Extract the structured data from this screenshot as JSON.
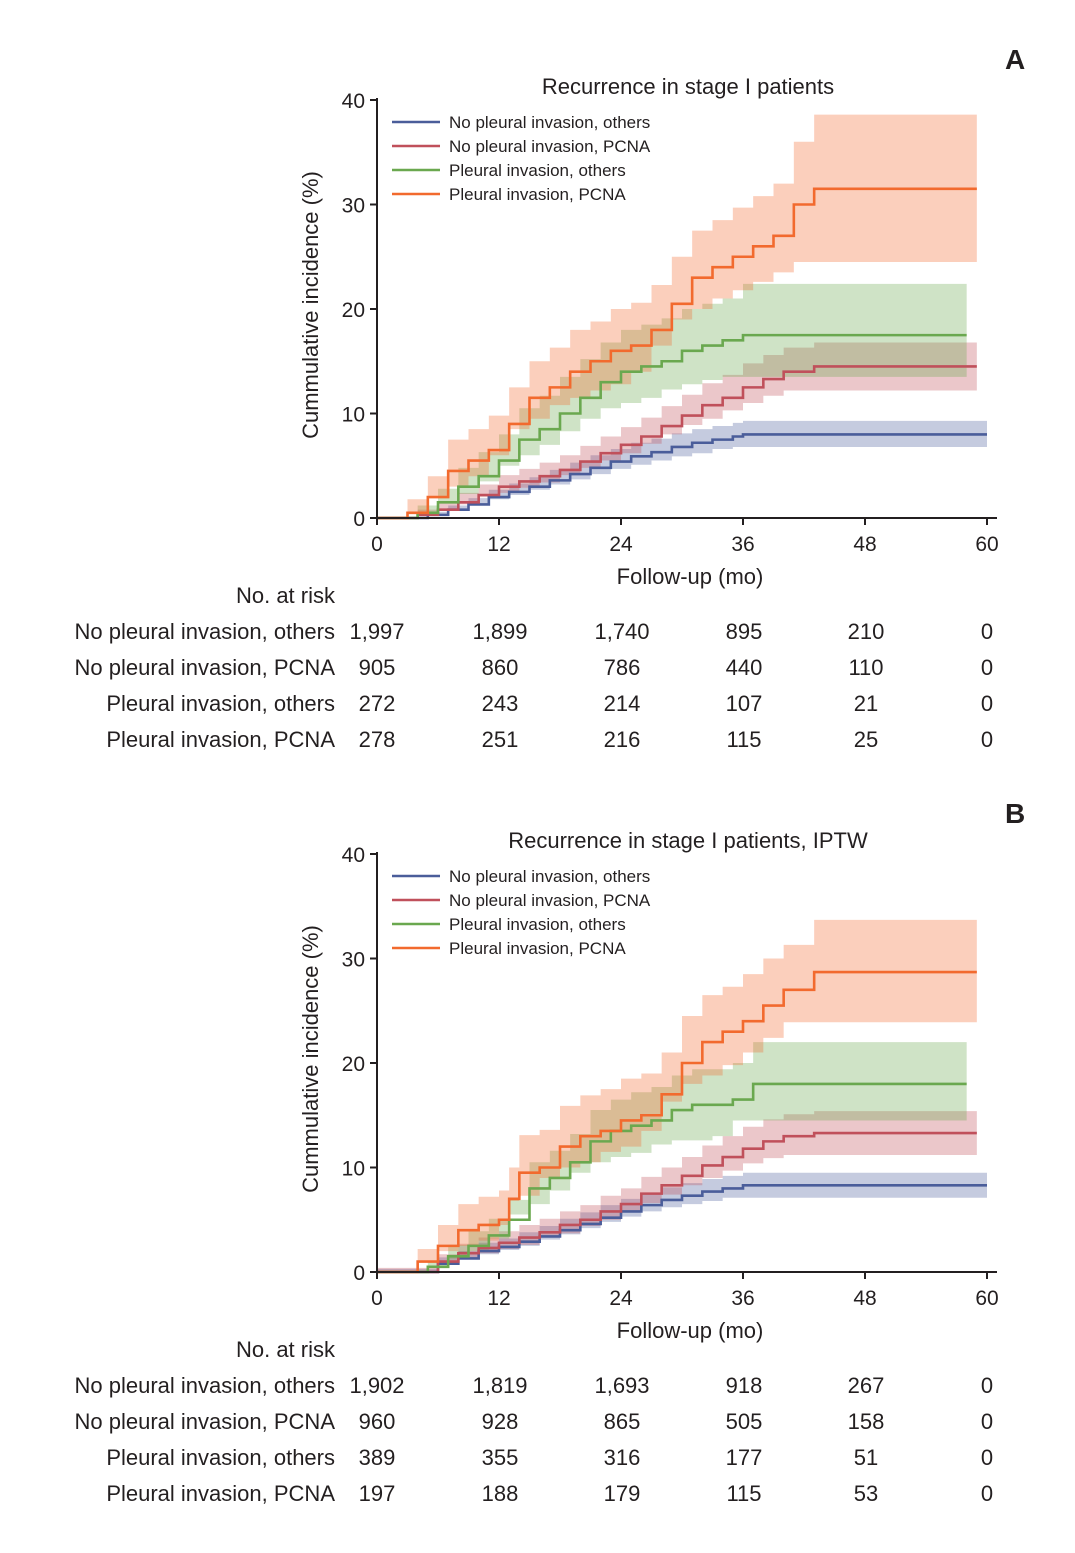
{
  "colors": {
    "blue": "#4a5d9a",
    "red": "#c0505b",
    "green": "#6aa84f",
    "orange": "#f26a2e"
  },
  "chart_data": [
    {
      "panel": "A",
      "type": "line",
      "title": "Recurrence in stage I patients",
      "xlabel": "Follow-up (mo)",
      "ylabel": "Cummulative incidence (%)",
      "xlim": [
        0,
        60
      ],
      "ylim": [
        0,
        40
      ],
      "xticks": [
        "0",
        "12",
        "24",
        "36",
        "48",
        "60"
      ],
      "yticks": [
        "0",
        "10",
        "20",
        "30",
        "40"
      ],
      "legend_position": "top-left",
      "series": [
        {
          "name": "No pleural invasion, others",
          "color": "#4a5d9a",
          "x": [
            0,
            5,
            7,
            9,
            11,
            13,
            15,
            17,
            19,
            21,
            23,
            25,
            27,
            29,
            31,
            33,
            35,
            36,
            60
          ],
          "y": [
            0,
            0.3,
            0.8,
            1.3,
            2,
            2.5,
            3,
            3.6,
            4.2,
            4.8,
            5.4,
            5.9,
            6.3,
            6.8,
            7.2,
            7.5,
            7.8,
            8,
            8
          ],
          "lower": [
            0,
            0.1,
            0.4,
            0.8,
            1.3,
            1.8,
            2.2,
            2.7,
            3.2,
            3.7,
            4.2,
            4.7,
            5.1,
            5.5,
            5.9,
            6.2,
            6.6,
            6.8,
            6.8
          ],
          "upper": [
            0,
            0.6,
            1.2,
            1.9,
            2.7,
            3.3,
            3.9,
            4.6,
            5.3,
            6,
            6.6,
            7.2,
            7.6,
            8.1,
            8.5,
            8.8,
            9.1,
            9.3,
            9.3
          ]
        },
        {
          "name": "No pleural invasion, PCNA",
          "color": "#c0505b",
          "x": [
            0,
            4,
            6,
            8,
            10,
            12,
            14,
            16,
            18,
            20,
            22,
            24,
            26,
            28,
            30,
            32,
            34,
            36,
            38,
            40,
            43,
            59
          ],
          "y": [
            0,
            0.3,
            0.8,
            1.5,
            2.2,
            3,
            3.5,
            4,
            4.6,
            5.4,
            6.2,
            7,
            7.8,
            8.8,
            9.8,
            10.8,
            11.5,
            12.5,
            13.3,
            14,
            14.5,
            14.5
          ],
          "lower": [
            0,
            0,
            0.3,
            0.8,
            1.3,
            2,
            2.4,
            2.9,
            3.4,
            4.1,
            4.8,
            5.5,
            6.2,
            7.1,
            8,
            8.9,
            9.5,
            10.3,
            11,
            11.7,
            12.2,
            12.2
          ],
          "upper": [
            0,
            0.8,
            1.5,
            2.4,
            3.2,
            4.1,
            4.7,
            5.3,
            6,
            6.9,
            7.8,
            8.7,
            9.6,
            10.7,
            11.8,
            12.9,
            13.7,
            14.8,
            15.6,
            16.3,
            16.8,
            16.8
          ]
        },
        {
          "name": "Pleural invasion, others",
          "color": "#6aa84f",
          "x": [
            0,
            4,
            6,
            8,
            10,
            12,
            14,
            16,
            18,
            20,
            22,
            24,
            26,
            28,
            30,
            32,
            34,
            36,
            38,
            40,
            58
          ],
          "y": [
            0,
            0.5,
            1.5,
            3,
            4,
            5.5,
            7.5,
            8.5,
            10,
            11.5,
            13,
            14,
            14.5,
            15,
            16,
            16.5,
            17,
            17.5,
            17.5,
            17.5,
            17.5
          ],
          "lower": [
            0,
            0,
            0.5,
            1.5,
            2.3,
            3.5,
            5,
            6,
            7,
            8.3,
            9.5,
            10.5,
            11,
            11.5,
            12.3,
            12.8,
            13.2,
            13.5,
            13.5,
            13.5,
            13.5
          ],
          "upper": [
            0,
            1.2,
            2.8,
            4.8,
            6.3,
            8,
            10.5,
            11.7,
            13.5,
            15.2,
            16.8,
            18,
            18.5,
            19.1,
            20,
            20.5,
            21,
            22.4,
            22.4,
            22.4,
            22.4
          ]
        },
        {
          "name": "Pleural invasion, PCNA",
          "color": "#f26a2e",
          "x": [
            0,
            3,
            5,
            7,
            9,
            11,
            13,
            15,
            17,
            19,
            21,
            23,
            25,
            27,
            29,
            31,
            33,
            35,
            37,
            39,
            41,
            43,
            59
          ],
          "y": [
            0,
            0.5,
            2,
            4.5,
            5.5,
            6.5,
            9,
            11.5,
            12.5,
            14,
            15,
            16,
            16.5,
            18,
            20.5,
            23,
            24,
            25,
            26,
            27,
            30,
            31.5,
            31.5
          ],
          "lower": [
            0,
            0,
            0.5,
            2,
            3,
            4,
            6,
            8.5,
            9.5,
            10.8,
            11.5,
            12.2,
            12.8,
            14,
            16.5,
            19,
            20,
            21,
            21.8,
            22.6,
            23.5,
            24.5,
            24.5
          ],
          "upper": [
            0,
            1.8,
            4,
            7.5,
            8.5,
            9.8,
            12.5,
            15,
            16.3,
            18,
            18.8,
            20,
            20.6,
            22.3,
            25,
            27.5,
            28.5,
            29.7,
            30.8,
            32,
            36,
            38.6,
            38.6
          ]
        }
      ],
      "at_risk": {
        "label": "No. at risk",
        "rows": [
          {
            "name": "No pleural invasion, others",
            "values": [
              "1,997",
              "1,899",
              "1,740",
              "895",
              "210",
              "0"
            ]
          },
          {
            "name": "No pleural invasion, PCNA",
            "values": [
              "905",
              "860",
              "786",
              "440",
              "110",
              "0"
            ]
          },
          {
            "name": "Pleural invasion, others",
            "values": [
              "272",
              "243",
              "214",
              "107",
              "21",
              "0"
            ]
          },
          {
            "name": "Pleural invasion, PCNA",
            "values": [
              "278",
              "251",
              "216",
              "115",
              "25",
              "0"
            ]
          }
        ]
      }
    },
    {
      "panel": "B",
      "type": "line",
      "title": "Recurrence in stage I patients, IPTW",
      "xlabel": "Follow-up (mo)",
      "ylabel": "Cummulative incidence (%)",
      "xlim": [
        0,
        60
      ],
      "ylim": [
        0,
        40
      ],
      "xticks": [
        "0",
        "12",
        "24",
        "36",
        "48",
        "60"
      ],
      "yticks": [
        "0",
        "10",
        "20",
        "30",
        "40"
      ],
      "legend_position": "top-left",
      "series": [
        {
          "name": "No pleural invasion, others",
          "color": "#4a5d9a",
          "x": [
            0,
            6,
            8,
            10,
            12,
            14,
            16,
            18,
            20,
            22,
            24,
            26,
            28,
            30,
            32,
            34,
            36,
            60
          ],
          "y": [
            0,
            0.8,
            1.3,
            2,
            2.4,
            2.9,
            3.4,
            4,
            4.6,
            5.2,
            5.8,
            6.4,
            6.9,
            7.3,
            7.7,
            8,
            8.3,
            8.3
          ],
          "lower": [
            0,
            0.3,
            0.7,
            1.3,
            1.7,
            2.1,
            2.5,
            3.1,
            3.6,
            4.2,
            4.8,
            5.3,
            5.8,
            6.2,
            6.5,
            6.8,
            7.1,
            7.1
          ],
          "upper": [
            0,
            1.4,
            2,
            2.8,
            3.2,
            3.8,
            4.4,
            5.1,
            5.7,
            6.4,
            7,
            7.6,
            8.1,
            8.5,
            8.9,
            9.2,
            9.5,
            9.5
          ]
        },
        {
          "name": "No pleural invasion, PCNA",
          "color": "#c0505b",
          "x": [
            0,
            6,
            8,
            10,
            12,
            14,
            16,
            18,
            20,
            22,
            24,
            26,
            28,
            30,
            32,
            34,
            36,
            38,
            40,
            43,
            59
          ],
          "y": [
            0,
            1,
            1.8,
            2.3,
            2.8,
            3.3,
            3.8,
            4.5,
            5,
            5.8,
            6.5,
            7.5,
            8.3,
            9.2,
            10.2,
            11,
            11.8,
            12.5,
            13,
            13.3,
            13.3
          ],
          "lower": [
            0,
            0.4,
            1,
            1.4,
            1.8,
            2.2,
            2.6,
            3.3,
            3.7,
            4.4,
            5,
            5.9,
            6.6,
            7.4,
            8.3,
            9,
            9.7,
            10.4,
            10.9,
            11.2,
            11.2
          ],
          "upper": [
            0,
            1.7,
            2.7,
            3.3,
            3.9,
            4.5,
            5.1,
            5.8,
            6.4,
            7.3,
            8,
            9.1,
            10,
            11,
            12.1,
            13,
            13.9,
            14.6,
            15.1,
            15.4,
            15.4
          ]
        },
        {
          "name": "Pleural invasion, others",
          "color": "#6aa84f",
          "x": [
            0,
            5,
            7,
            9,
            11,
            13,
            15,
            17,
            19,
            21,
            23,
            25,
            27,
            29,
            31,
            33,
            35,
            37,
            39,
            58
          ],
          "y": [
            0,
            0.5,
            1.5,
            2.5,
            3.5,
            5,
            8,
            9,
            10.5,
            12.5,
            13.5,
            14,
            14.5,
            15.5,
            16,
            16,
            16.5,
            18,
            18,
            18
          ],
          "lower": [
            0,
            0,
            0.5,
            1.2,
            2,
            3.2,
            5.5,
            6.5,
            7.8,
            9.5,
            10.5,
            11,
            11.4,
            12.2,
            12.6,
            12.6,
            13,
            14.5,
            14.5,
            14.5
          ],
          "upper": [
            0,
            1.1,
            2.6,
            3.9,
            5.1,
            6.9,
            10.5,
            11.6,
            13.2,
            15.5,
            16.5,
            17.2,
            17.7,
            18.8,
            19.4,
            19.4,
            20,
            22,
            22,
            22
          ]
        },
        {
          "name": "Pleural invasion, PCNA",
          "color": "#f26a2e",
          "x": [
            0,
            4,
            6,
            8,
            10,
            12,
            13,
            14,
            16,
            18,
            20,
            22,
            24,
            26,
            28,
            30,
            32,
            34,
            36,
            38,
            40,
            43,
            59
          ],
          "y": [
            0,
            1,
            2.5,
            4,
            4.5,
            5,
            7,
            9.5,
            10,
            12,
            13,
            13.5,
            14.5,
            15,
            17,
            20,
            22,
            23,
            24,
            25.5,
            27,
            28.7,
            28.7
          ],
          "lower": [
            0,
            0,
            1,
            2,
            2.5,
            3,
            4.5,
            6.8,
            7.3,
            9,
            10,
            10.5,
            11.5,
            12,
            13.5,
            16.3,
            18,
            18.8,
            19.8,
            21,
            22.4,
            23.9,
            23.9
          ],
          "upper": [
            0,
            2.2,
            4.5,
            6.5,
            7.2,
            7.8,
            10,
            13.1,
            13.6,
            15.9,
            16.9,
            17.5,
            18.5,
            19,
            21,
            24.5,
            26.5,
            27.3,
            28.5,
            30,
            31.3,
            33.7,
            33.7
          ]
        }
      ],
      "at_risk": {
        "label": "No. at risk",
        "rows": [
          {
            "name": "No pleural invasion, others",
            "values": [
              "1,902",
              "1,819",
              "1,693",
              "918",
              "267",
              "0"
            ]
          },
          {
            "name": "No pleural invasion, PCNA",
            "values": [
              "960",
              "928",
              "865",
              "505",
              "158",
              "0"
            ]
          },
          {
            "name": "Pleural invasion, others",
            "values": [
              "389",
              "355",
              "316",
              "177",
              "51",
              "0"
            ]
          },
          {
            "name": "Pleural invasion, PCNA",
            "values": [
              "197",
              "188",
              "179",
              "115",
              "53",
              "0"
            ]
          }
        ]
      }
    }
  ]
}
